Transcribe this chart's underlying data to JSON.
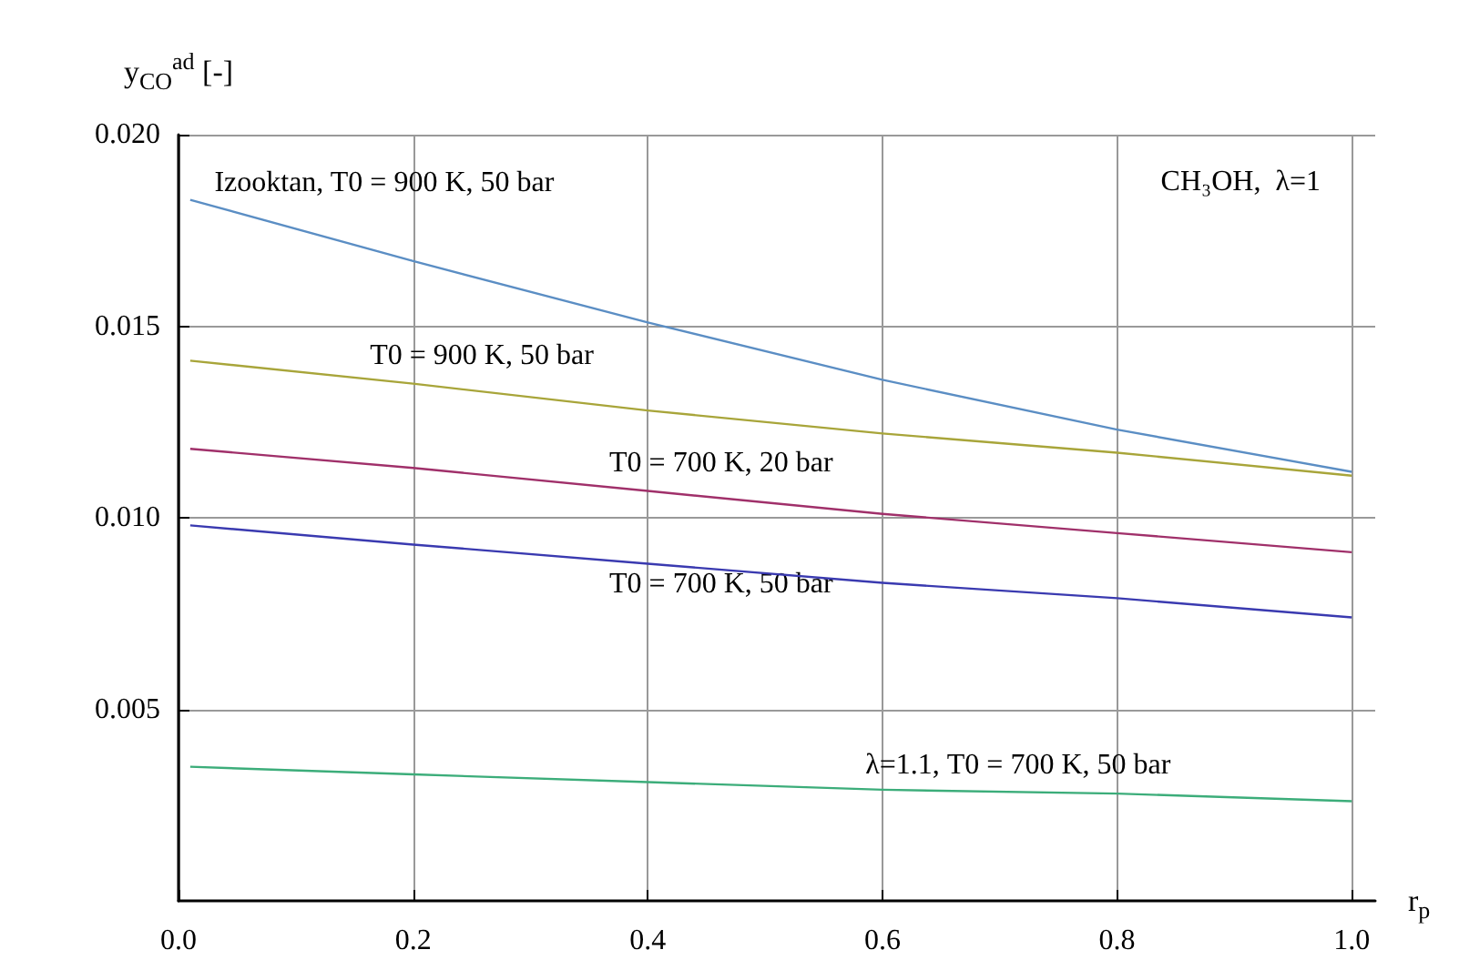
{
  "chart_data": {
    "type": "line",
    "xlabel": "r$_{p}$",
    "ylabel": "y$_{CO}$$^{ad}$ [-]",
    "x": [
      0.01,
      0.2,
      0.4,
      0.6,
      0.8,
      1.0
    ],
    "series": [
      {
        "name": "Izooktan, T0 = 900 K, 50 bar",
        "color": "#5b8ec4",
        "values": [
          0.0183,
          0.0167,
          0.0151,
          0.0136,
          0.0123,
          0.0112
        ]
      },
      {
        "name": "T0 = 900 K, 50 bar",
        "color": "#a8a53a",
        "values": [
          0.0141,
          0.0135,
          0.0128,
          0.0122,
          0.0117,
          0.0111
        ]
      },
      {
        "name": "T0 = 700 K, 20 bar",
        "color": "#a0306a",
        "values": [
          0.0118,
          0.0113,
          0.0107,
          0.0101,
          0.0096,
          0.0091
        ]
      },
      {
        "name": "T0 = 700 K, 50 bar",
        "color": "#3a3ab0",
        "values": [
          0.0098,
          0.0093,
          0.0088,
          0.0083,
          0.0079,
          0.0074
        ]
      },
      {
        "name": "λ=1.1, T0 = 700 K, 50 bar",
        "color": "#3cad7a",
        "values": [
          0.0035,
          0.0033,
          0.0031,
          0.0029,
          0.0028,
          0.0026
        ]
      }
    ],
    "xlim": [
      0,
      1.02
    ],
    "ylim": [
      0,
      0.02
    ],
    "xticks": [
      {
        "value": 0,
        "label": "0.0"
      },
      0.2,
      0.4,
      0.6,
      0.8,
      {
        "value": 1,
        "label": "1.0"
      }
    ],
    "yticks": [
      0.005,
      {
        "value": 0.01,
        "label": "0.010"
      },
      0.015,
      {
        "value": 0.02,
        "label": "0.020"
      }
    ],
    "grid": true,
    "marker": "none",
    "line_style": "solid",
    "annotations": [
      "CH₃OH,  λ=1"
    ]
  }
}
